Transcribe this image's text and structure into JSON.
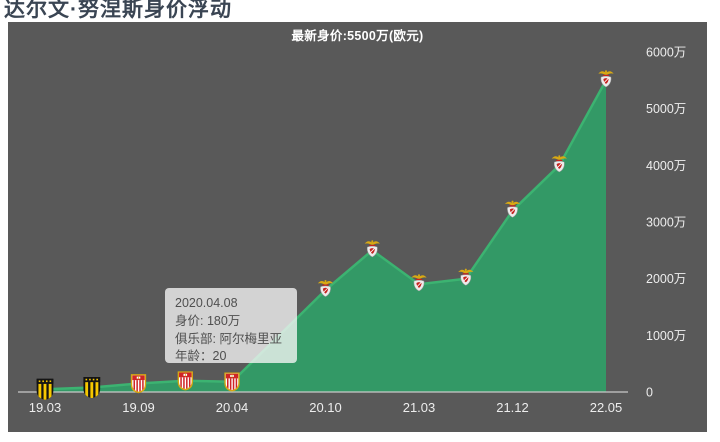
{
  "page": {
    "title": "达尔文·努涅斯身价浮动"
  },
  "chart": {
    "header": "最新身价:5500万(欧元)",
    "tooltip": {
      "lines": [
        "2020.04.08",
        "身价: 180万",
        "俱乐部: 阿尔梅里亚",
        "年龄：20"
      ]
    }
  },
  "chart_data": {
    "type": "area",
    "title": "最新身价:5500万(欧元)",
    "unit": "万(欧元)",
    "x_tick_labels": [
      "19.03",
      "19.09",
      "20.04",
      "20.10",
      "21.03",
      "21.12",
      "22.05"
    ],
    "y_ticks": [
      {
        "value": 0,
        "label": "0"
      },
      {
        "value": 1000,
        "label": "1000万"
      },
      {
        "value": 2000,
        "label": "2000万"
      },
      {
        "value": 3000,
        "label": "3000万"
      },
      {
        "value": 4000,
        "label": "4000万"
      },
      {
        "value": 5000,
        "label": "5000万"
      },
      {
        "value": 6000,
        "label": "6000万"
      }
    ],
    "ylim": [
      0,
      6000
    ],
    "grid": false,
    "legend": false,
    "points": [
      {
        "x": 0,
        "value": 50,
        "club": "penarol"
      },
      {
        "x": 0.5,
        "value": 80,
        "club": "penarol"
      },
      {
        "x": 1,
        "value": 150,
        "club": "almeria"
      },
      {
        "x": 1.5,
        "value": 200,
        "club": "almeria"
      },
      {
        "x": 2,
        "value": 180,
        "club": "almeria"
      },
      {
        "x": 3,
        "value": 1800,
        "club": "benfica"
      },
      {
        "x": 3.5,
        "value": 2500,
        "club": "benfica"
      },
      {
        "x": 4,
        "value": 1900,
        "club": "benfica"
      },
      {
        "x": 4.5,
        "value": 2000,
        "club": "benfica"
      },
      {
        "x": 5,
        "value": 3200,
        "club": "benfica"
      },
      {
        "x": 5.5,
        "value": 4000,
        "club": "benfica"
      },
      {
        "x": 6,
        "value": 5500,
        "club": "benfica"
      }
    ],
    "colors": {
      "panel_bg": "#595959",
      "area_fill": "#339966",
      "line": "#3cb371",
      "axis": "#c9c9c9",
      "tick_label": "#ededed",
      "header_text": "#ffffff"
    }
  }
}
